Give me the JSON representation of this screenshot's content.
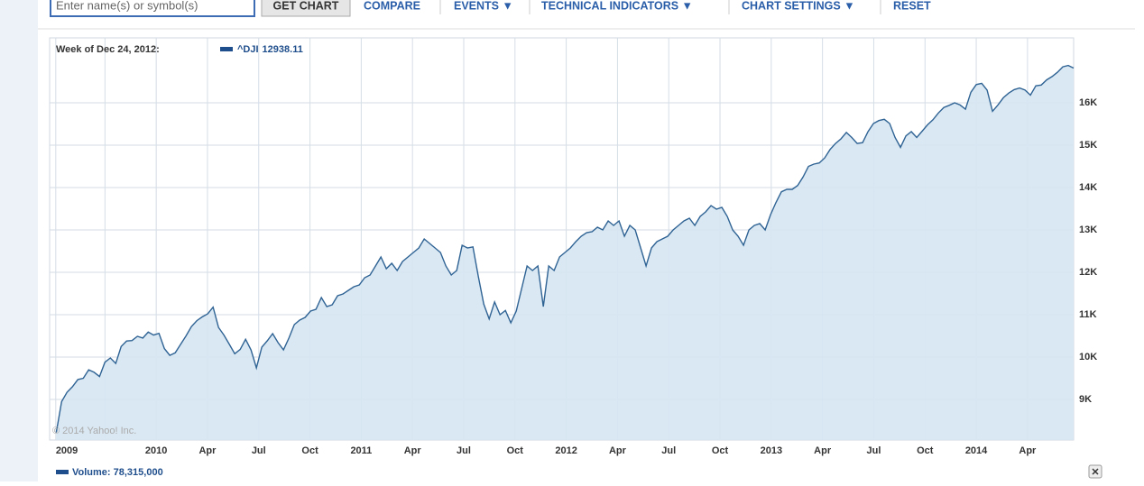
{
  "toolbar": {
    "search_placeholder": "Enter name(s) or symbol(s)",
    "button": "GET CHART",
    "links": [
      "COMPARE",
      "EVENTS ▼",
      "TECHNICAL INDICATORS ▼",
      "CHART SETTINGS ▼",
      "RESET"
    ]
  },
  "chart_data": {
    "type": "area",
    "hover_label": "Week of Dec 24, 2012:",
    "hover_value": 12938.11,
    "copyright": "© 2014 Yahoo! Inc.",
    "volume_legend": "Volume: 78,315,000",
    "grid": true,
    "xlim": [
      2009.48,
      2014.475
    ],
    "ylim": [
      8043,
      17532
    ],
    "xticks": [
      {
        "value": 2009.51,
        "label": "2009"
      },
      {
        "value": 2009.75,
        "label": null
      },
      2010,
      {
        "value": 2010.25,
        "label": "Apr"
      },
      {
        "value": 2010.5,
        "label": "Jul"
      },
      {
        "value": 2010.75,
        "label": "Oct"
      },
      2011,
      {
        "value": 2011.25,
        "label": "Apr"
      },
      {
        "value": 2011.5,
        "label": "Jul"
      },
      {
        "value": 2011.75,
        "label": "Oct"
      },
      2012,
      {
        "value": 2012.25,
        "label": "Apr"
      },
      {
        "value": 2012.5,
        "label": "Jul"
      },
      {
        "value": 2012.75,
        "label": "Oct"
      },
      2013,
      {
        "value": 2013.25,
        "label": "Apr"
      },
      {
        "value": 2013.5,
        "label": "Jul"
      },
      {
        "value": 2013.75,
        "label": "Oct"
      },
      2014,
      {
        "value": 2014.25,
        "label": "Apr"
      }
    ],
    "yticks": [
      {
        "value": 9000,
        "label": "9K"
      },
      {
        "value": 10000,
        "label": "10K"
      },
      {
        "value": 11000,
        "label": "11K"
      },
      {
        "value": 12000,
        "label": "12K"
      },
      {
        "value": 13000,
        "label": "13K"
      },
      {
        "value": 14000,
        "label": "14K"
      },
      {
        "value": 15000,
        "label": "15K"
      },
      {
        "value": 16000,
        "label": "16K"
      }
    ],
    "x": [
      2009.512,
      2009.5384,
      2009.5648,
      2009.5912,
      2009.6176,
      2009.644,
      2009.6704,
      2009.6968,
      2009.7232,
      2009.7496,
      2009.776,
      2009.8024,
      2009.8288,
      2009.8552,
      2009.8816,
      2009.908,
      2009.9344,
      2009.9608,
      2009.9872,
      2010.0136,
      2010.04,
      2010.0664,
      2010.0928,
      2010.1192,
      2010.1456,
      2010.172,
      2010.1984,
      2010.2248,
      2010.2512,
      2010.2776,
      2010.304,
      2010.3304,
      2010.3568,
      2010.3832,
      2010.4096,
      2010.436,
      2010.4624,
      2010.4888,
      2010.5152,
      2010.5416,
      2010.568,
      2010.5944,
      2010.6208,
      2010.6472,
      2010.6736,
      2010.7,
      2010.7264,
      2010.7528,
      2010.7792,
      2010.8056,
      2010.832,
      2010.8584,
      2010.8848,
      2010.9112,
      2010.9376,
      2010.964,
      2010.9904,
      2011.0168,
      2011.0432,
      2011.0696,
      2011.096,
      2011.1224,
      2011.1488,
      2011.1752,
      2011.2016,
      2011.228,
      2011.2544,
      2011.2808,
      2011.3072,
      2011.3336,
      2011.36,
      2011.3864,
      2011.4128,
      2011.4392,
      2011.4656,
      2011.492,
      2011.5184,
      2011.5448,
      2011.5712,
      2011.5976,
      2011.624,
      2011.6504,
      2011.6768,
      2011.7032,
      2011.7296,
      2011.756,
      2011.7824,
      2011.8088,
      2011.8352,
      2011.8616,
      2011.888,
      2011.9144,
      2011.9408,
      2011.9672,
      2011.9936,
      2012.02,
      2012.0464,
      2012.0728,
      2012.0992,
      2012.1256,
      2012.152,
      2012.1784,
      2012.2048,
      2012.2312,
      2012.2576,
      2012.284,
      2012.3104,
      2012.3368,
      2012.3632,
      2012.3896,
      2012.416,
      2012.4424,
      2012.4688,
      2012.4952,
      2012.5216,
      2012.548,
      2012.5744,
      2012.6008,
      2012.6272,
      2012.6536,
      2012.68,
      2012.7064,
      2012.7328,
      2012.7592,
      2012.7856,
      2012.812,
      2012.8384,
      2012.8648,
      2012.8912,
      2012.9176,
      2012.944,
      2012.9704,
      2012.9968,
      2013.0232,
      2013.0496,
      2013.076,
      2013.1024,
      2013.1288,
      2013.1552,
      2013.1816,
      2013.208,
      2013.2344,
      2013.2608,
      2013.2872,
      2013.3136,
      2013.34,
      2013.3664,
      2013.3928,
      2013.4192,
      2013.4456,
      2013.472,
      2013.4984,
      2013.5248,
      2013.5512,
      2013.5776,
      2013.604,
      2013.6304,
      2013.6568,
      2013.6832,
      2013.7096,
      2013.736,
      2013.7624,
      2013.7888,
      2013.8152,
      2013.8416,
      2013.868,
      2013.8944,
      2013.9208,
      2013.9472,
      2013.9736,
      2014.0,
      2014.0264,
      2014.0528,
      2014.0792,
      2014.1056,
      2014.132,
      2014.1584,
      2014.1848,
      2014.2112,
      2014.2376,
      2014.264,
      2014.2904,
      2014.3168,
      2014.3432,
      2014.3696,
      2014.396,
      2014.4224,
      2014.4488,
      2014.4752
    ],
    "series": [
      {
        "name": "^DJI",
        "color": "#2f6394",
        "fill": "#d6e6f2",
        "values": [
          8213,
          8950,
          9170,
          9300,
          9470,
          9500,
          9700,
          9640,
          9540,
          9880,
          9979,
          9850,
          10250,
          10380,
          10390,
          10490,
          10450,
          10590,
          10520,
          10560,
          10200,
          10040,
          10100,
          10300,
          10500,
          10720,
          10860,
          10950,
          11020,
          11180,
          10700,
          10520,
          10300,
          10080,
          10180,
          10420,
          10170,
          9745,
          10234,
          10383,
          10553,
          10341,
          10170,
          10447,
          10766,
          10872,
          10936,
          11085,
          11128,
          11405,
          11192,
          11234,
          11447,
          11490,
          11575,
          11660,
          11703,
          11873,
          11937,
          12149,
          12362,
          12086,
          12213,
          12043,
          12256,
          12362,
          12468,
          12575,
          12788,
          12681,
          12575,
          12468,
          12149,
          11937,
          12043,
          12639,
          12575,
          12600,
          11900,
          11250,
          10900,
          11300,
          11000,
          11100,
          10809,
          11085,
          11618,
          12149,
          12043,
          12149,
          11192,
          12149,
          12043,
          12362,
          12468,
          12575,
          12724,
          12852,
          12937,
          12958,
          13064,
          13000,
          13213,
          13107,
          13213,
          12852,
          13107,
          13000,
          12575,
          12149,
          12575,
          12724,
          12788,
          12852,
          13000,
          13107,
          13213,
          13277,
          13107,
          13320,
          13426,
          13575,
          13490,
          13532,
          13320,
          13000,
          12852,
          12639,
          13000,
          13107,
          13149,
          13000,
          13362,
          13650,
          13900,
          13958,
          13958,
          14050,
          14250,
          14500,
          14554,
          14580,
          14700,
          14900,
          15040,
          15150,
          15300,
          15180,
          15040,
          15060,
          15320,
          15510,
          15580,
          15610,
          15510,
          15180,
          14950,
          15220,
          15320,
          15180,
          15330,
          15480,
          15600,
          15760,
          15890,
          15940,
          16000,
          15950,
          15850,
          16250,
          16430,
          16460,
          16300,
          15800,
          15950,
          16120,
          16230,
          16310,
          16350,
          16300,
          16180,
          16400,
          16420,
          16540,
          16620,
          16720,
          16850,
          16880,
          16820
        ]
      }
    ]
  }
}
